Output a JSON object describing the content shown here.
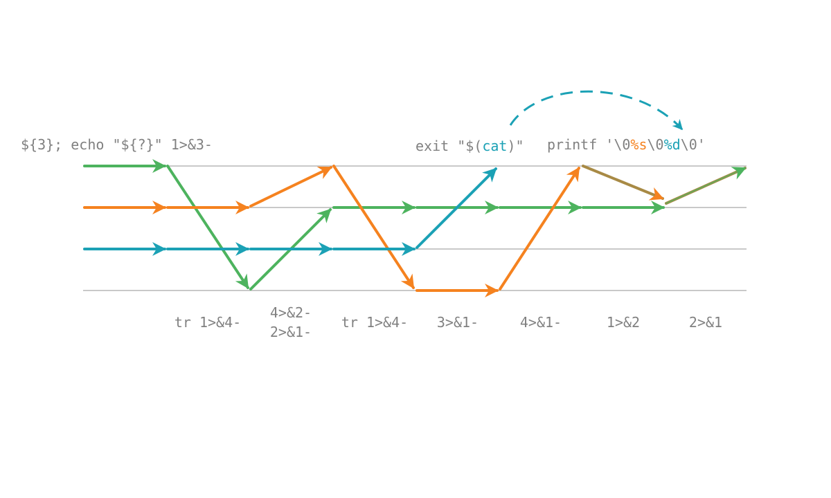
{
  "colors": {
    "stream1": "#4db35e",
    "stream2": "#f5821f",
    "stream3": "#1ba1b5",
    "mixed": "#a88a45",
    "rail": "#c8c8c8",
    "label": "#808080"
  },
  "top_labels": {
    "first": "${3}; echo \"${?}\" 1>&3-",
    "exit": {
      "pre": "exit \"$(",
      "cmd": "cat",
      "post": ")\""
    },
    "printf": {
      "pre": "printf '\\0",
      "s": "%s",
      "mid": "\\0",
      "d": "%d",
      "post": "\\0'"
    }
  },
  "stage_labels": [
    [
      "tr 1>&4-"
    ],
    [
      "4>&2-",
      "2>&1-"
    ],
    [
      "tr 1>&4-"
    ],
    [
      "3>&1-"
    ],
    [
      "4>&1-"
    ],
    [
      "1>&2"
    ],
    [
      "2>&1"
    ]
  ]
}
